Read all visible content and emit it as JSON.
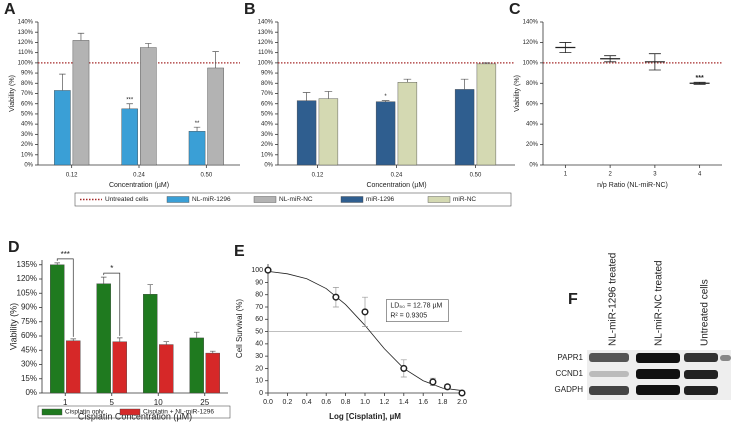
{
  "chart_data": [
    {
      "type": "bar",
      "label": "A",
      "xlabel": "Concentration (µM)",
      "ylabel": "Viability (%)",
      "categories": [
        "0.12",
        "0.24",
        "0.50"
      ],
      "series": [
        {
          "name": "NL-miR-1296",
          "color": "#3a9fd6",
          "values": [
            73,
            55,
            33
          ],
          "errors": [
            16,
            5,
            4
          ],
          "annotations": [
            null,
            "***",
            "**"
          ]
        },
        {
          "name": "NL-miR-NC",
          "color": "#b3b3b3",
          "values": [
            122,
            115,
            95
          ],
          "errors": [
            7,
            4,
            16
          ],
          "annotations": [
            null,
            null,
            null
          ]
        }
      ],
      "reference": {
        "name": "Untreated cells",
        "value": 100,
        "color": "#a52a2a",
        "linestyle": "dotted"
      },
      "ylim": [
        0,
        140
      ],
      "yticks": [
        {
          "value": 0,
          "label": "0%"
        },
        {
          "value": 10,
          "label": "10%"
        },
        {
          "value": 20,
          "label": "20%"
        },
        {
          "value": 30,
          "label": "30%"
        },
        {
          "value": 40,
          "label": "40%"
        },
        {
          "value": 50,
          "label": "50%"
        },
        {
          "value": 60,
          "label": "60%"
        },
        {
          "value": 70,
          "label": "70%"
        },
        {
          "value": 80,
          "label": "80%"
        },
        {
          "value": 90,
          "label": "90%"
        },
        {
          "value": 100,
          "label": "100%"
        },
        {
          "value": 110,
          "label": "110%"
        },
        {
          "value": 120,
          "label": "120%"
        },
        {
          "value": 130,
          "label": "130%"
        },
        {
          "value": 140,
          "label": "140%"
        }
      ]
    },
    {
      "type": "bar",
      "label": "B",
      "xlabel": "Concentration (µM)",
      "categories": [
        "0.12",
        "0.24",
        "0.50"
      ],
      "series": [
        {
          "name": "miR-1296",
          "color": "#2f5e8f",
          "values": [
            63,
            62,
            74
          ],
          "errors": [
            8,
            1,
            10
          ],
          "annotations": [
            null,
            "*",
            null
          ]
        },
        {
          "name": "miR-NC",
          "color": "#d4d9b2",
          "values": [
            65,
            81,
            99
          ],
          "errors": [
            7,
            3,
            1
          ],
          "annotations": [
            null,
            null,
            null
          ]
        }
      ],
      "reference": {
        "value": 100,
        "color": "#a52a2a",
        "linestyle": "dotted"
      },
      "ylim": [
        0,
        140
      ],
      "yticks": [
        {
          "value": 0,
          "label": "0%"
        },
        {
          "value": 10,
          "label": "10%"
        },
        {
          "value": 20,
          "label": "20%"
        },
        {
          "value": 30,
          "label": "30%"
        },
        {
          "value": 40,
          "label": "40%"
        },
        {
          "value": 50,
          "label": "50%"
        },
        {
          "value": 60,
          "label": "60%"
        },
        {
          "value": 70,
          "label": "70%"
        },
        {
          "value": 80,
          "label": "80%"
        },
        {
          "value": 90,
          "label": "90%"
        },
        {
          "value": 100,
          "label": "100%"
        },
        {
          "value": 110,
          "label": "110%"
        },
        {
          "value": 120,
          "label": "120%"
        },
        {
          "value": 130,
          "label": "130%"
        },
        {
          "value": 140,
          "label": "140%"
        }
      ]
    },
    {
      "type": "errorbar",
      "label": "C",
      "xlabel": "n/p Ratio (NL-miR-NC)",
      "ylabel": "Viability (%)",
      "x": [
        1,
        2,
        3,
        4
      ],
      "values": [
        115,
        104,
        101,
        80
      ],
      "errors": [
        5,
        3,
        8,
        1
      ],
      "annotations": [
        null,
        null,
        null,
        "***"
      ],
      "color": "#222222",
      "reference": {
        "value": 100,
        "color": "#a52a2a",
        "linestyle": "dotted"
      },
      "xlim": [
        0.5,
        4.5
      ],
      "xticks": [
        1,
        2,
        3,
        4
      ],
      "ylim": [
        0,
        140
      ],
      "yticks": [
        {
          "value": 0,
          "label": "0%"
        },
        {
          "value": 20,
          "label": "20%"
        },
        {
          "value": 40,
          "label": "40%"
        },
        {
          "value": 60,
          "label": "60%"
        },
        {
          "value": 80,
          "label": "80%"
        },
        {
          "value": 100,
          "label": "100%"
        },
        {
          "value": 120,
          "label": "120%"
        },
        {
          "value": 140,
          "label": "140%"
        }
      ]
    },
    {
      "type": "bar",
      "label": "D",
      "xlabel": "Cisplatin Concentration (µM)",
      "ylabel": "Viability (%)",
      "bracket": true,
      "categories": [
        "1",
        "5",
        "10",
        "25"
      ],
      "series": [
        {
          "name": "Cisplatin only",
          "color": "#1f7a1f",
          "values": [
            135,
            115,
            104,
            58
          ],
          "errors": [
            2,
            7,
            10,
            6
          ],
          "annotations": [
            "***",
            "*",
            null,
            null
          ]
        },
        {
          "name": "Cisplatin + NL-miR-1296",
          "color": "#d62828",
          "values": [
            55,
            54,
            51,
            42
          ],
          "errors": [
            2,
            4,
            3,
            2
          ],
          "annotations": [
            null,
            null,
            null,
            null
          ]
        }
      ],
      "ylim": [
        0,
        140
      ],
      "yticks": [
        {
          "value": 0,
          "label": "0%"
        },
        {
          "value": 15,
          "label": "15%"
        },
        {
          "value": 30,
          "label": "30%"
        },
        {
          "value": 45,
          "label": "45%"
        },
        {
          "value": 60,
          "label": "60%"
        },
        {
          "value": 75,
          "label": "75%"
        },
        {
          "value": 90,
          "label": "90%"
        },
        {
          "value": 105,
          "label": "105%"
        },
        {
          "value": 120,
          "label": "120%"
        },
        {
          "value": 135,
          "label": "135%"
        }
      ]
    },
    {
      "type": "scatter",
      "label": "E",
      "xlabel": "Log [Cisplatin], µM",
      "ylabel": "Cell Survival (%)",
      "x": [
        0,
        0.7,
        1.0,
        1.4,
        1.7,
        1.85,
        2.0
      ],
      "values": [
        100,
        78,
        66,
        20,
        9,
        5,
        0
      ],
      "errors": [
        0,
        8,
        12,
        7,
        3,
        2,
        0
      ],
      "color": "#222222",
      "fit": {
        "x": [
          0,
          0.2,
          0.4,
          0.6,
          0.8,
          1.0,
          1.2,
          1.4,
          1.6,
          1.8,
          2.0
        ],
        "y": [
          99,
          97,
          93,
          85,
          72,
          55,
          36,
          20,
          10,
          4,
          2
        ]
      },
      "reference": {
        "value": 50,
        "color": "#999999",
        "linestyle": "solid"
      },
      "notes": [
        "LD₅₀ = 12.78 µM",
        "R² = 0.9305"
      ],
      "xlim": [
        0,
        2
      ],
      "ylim": [
        0,
        105
      ],
      "xticks": [
        {
          "value": 0,
          "label": "0.0"
        },
        0.2,
        0.4,
        0.6,
        0.8,
        {
          "value": 1,
          "label": "1.0"
        },
        1.2,
        1.4,
        1.6,
        1.8,
        {
          "value": 2,
          "label": "2.0"
        }
      ],
      "yticks": [
        0,
        10,
        20,
        30,
        40,
        50,
        60,
        70,
        80,
        90,
        100
      ]
    }
  ],
  "blot": {
    "label": "F",
    "columns": [
      "NL-miR-1296 treated",
      "NL-miR-NC treated",
      "Untreated cells"
    ],
    "rows": [
      "PAPR1",
      "CCND1",
      "GADPH"
    ]
  }
}
